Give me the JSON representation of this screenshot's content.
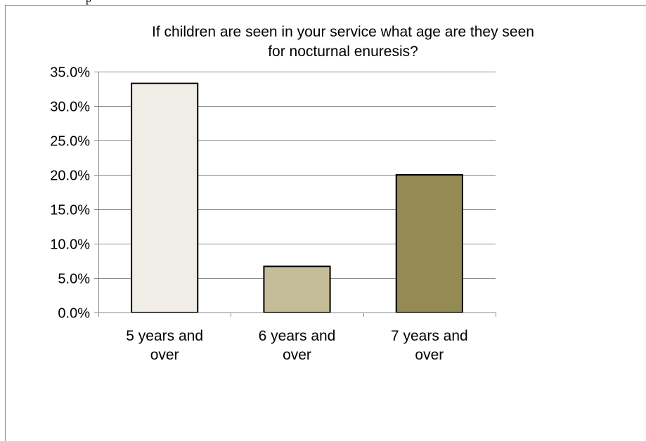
{
  "page": {
    "stray_text": "p"
  },
  "colors": {
    "bars": [
      "#efede5",
      "#c4bd97",
      "#948a54"
    ],
    "bar_stroke": "#000000",
    "gridline": "#8c8c8c",
    "axis": "#8c8c8c",
    "frame": "#8c8c8c"
  },
  "chart_data": {
    "type": "bar",
    "title_lines": [
      "If children are seen in your service what age are they seen",
      "for nocturnal enuresis?"
    ],
    "categories": [
      [
        "5 years and",
        "over"
      ],
      [
        "6 years and",
        "over"
      ],
      [
        "7 years and",
        "over"
      ]
    ],
    "values": [
      33.3,
      6.7,
      20.0
    ],
    "value_format": "percent_1dp",
    "ylim": [
      0,
      35
    ],
    "y_ticks": [
      0,
      5,
      10,
      15,
      20,
      25,
      30,
      35
    ],
    "y_tick_labels": [
      "0.0%",
      "5.0%",
      "10.0%",
      "15.0%",
      "20.0%",
      "25.0%",
      "30.0%",
      "35.0%"
    ],
    "xlabel": "",
    "ylabel": "",
    "grid": true,
    "legend": "none"
  }
}
